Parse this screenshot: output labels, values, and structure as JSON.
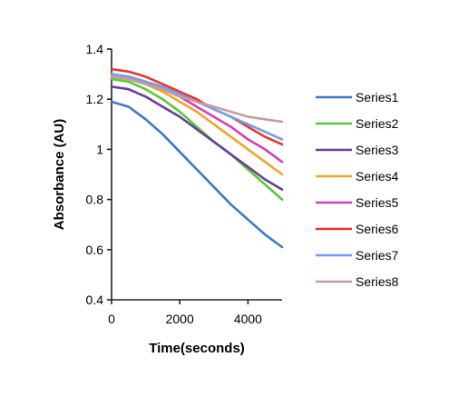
{
  "chart_data": {
    "type": "line",
    "title": "",
    "xlabel": "Time(seconds)",
    "ylabel": "Absorbance (AU)",
    "xlim": [
      0,
      5000
    ],
    "ylim": [
      0.4,
      1.4
    ],
    "xticks": [
      0,
      2000,
      4000
    ],
    "xtick_labels": [
      "0",
      "2000",
      "4000"
    ],
    "yticks": [
      0.4,
      0.6,
      0.8,
      1.0,
      1.2,
      1.4
    ],
    "ytick_labels": [
      "0.4",
      "0.6",
      "0.8",
      "1",
      "1.2",
      "1.4"
    ],
    "grid": false,
    "legend_position": "right",
    "x": [
      0,
      500,
      1000,
      1500,
      2000,
      2500,
      3000,
      3500,
      4000,
      4500,
      5000
    ],
    "series": [
      {
        "name": "Series1",
        "color": "#3c78c8",
        "values": [
          1.19,
          1.17,
          1.12,
          1.06,
          0.99,
          0.92,
          0.85,
          0.78,
          0.72,
          0.66,
          0.61
        ]
      },
      {
        "name": "Series2",
        "color": "#55cc33",
        "values": [
          1.28,
          1.27,
          1.24,
          1.2,
          1.15,
          1.09,
          1.03,
          0.98,
          0.92,
          0.86,
          0.8
        ]
      },
      {
        "name": "Series3",
        "color": "#6a3d9a",
        "values": [
          1.25,
          1.24,
          1.21,
          1.17,
          1.13,
          1.08,
          1.03,
          0.98,
          0.93,
          0.88,
          0.84
        ]
      },
      {
        "name": "Series4",
        "color": "#f0a628",
        "values": [
          1.29,
          1.28,
          1.26,
          1.23,
          1.19,
          1.15,
          1.1,
          1.05,
          1.0,
          0.95,
          0.9
        ]
      },
      {
        "name": "Series5",
        "color": "#d63fb4",
        "values": [
          1.3,
          1.29,
          1.27,
          1.24,
          1.21,
          1.17,
          1.13,
          1.09,
          1.04,
          1.0,
          0.95
        ]
      },
      {
        "name": "Series6",
        "color": "#e8352f",
        "values": [
          1.32,
          1.31,
          1.29,
          1.26,
          1.23,
          1.2,
          1.16,
          1.13,
          1.09,
          1.05,
          1.02
        ]
      },
      {
        "name": "Series7",
        "color": "#6fa0e8",
        "values": [
          1.3,
          1.29,
          1.27,
          1.25,
          1.22,
          1.19,
          1.16,
          1.13,
          1.1,
          1.07,
          1.04
        ]
      },
      {
        "name": "Series8",
        "color": "#c99a9a",
        "values": [
          1.29,
          1.28,
          1.26,
          1.24,
          1.21,
          1.19,
          1.17,
          1.15,
          1.13,
          1.12,
          1.11
        ]
      }
    ]
  }
}
